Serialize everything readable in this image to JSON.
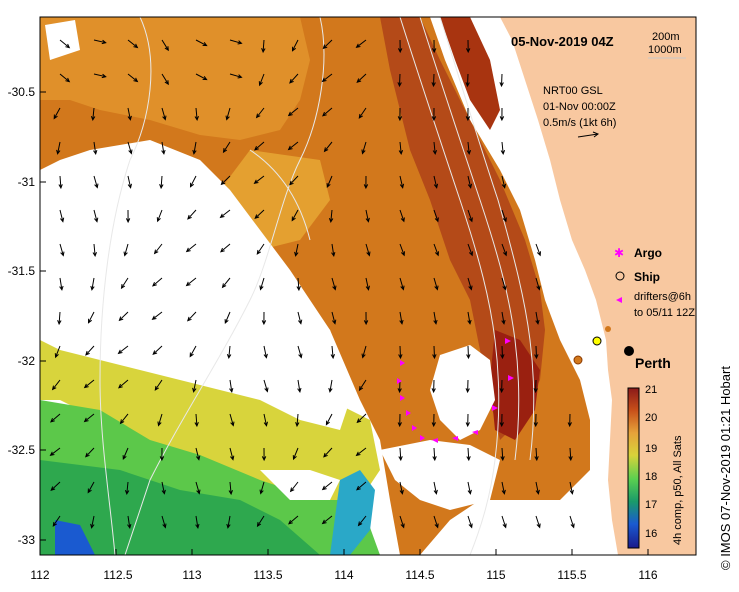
{
  "map": {
    "title": "05-Nov-2019 04Z",
    "depth_legend": [
      "200m",
      "1000m"
    ],
    "product_lines": [
      "NRT00 GSL",
      "01-Nov 00:00Z"
    ],
    "velocity_scale_label": "0.5m/s (1kt 6h)",
    "legend": {
      "argo": "Argo",
      "ship": "Ship",
      "drifters_line1": "drifters@6h",
      "drifters_line2": "to 05/11 12Z"
    },
    "city_label": "Perth",
    "colorbar": {
      "ticks": [
        "21",
        "20",
        "19",
        "18",
        "17",
        "16"
      ],
      "label": "4h comp, p50, All Sats",
      "colors": [
        "#8b1a1a",
        "#c8501a",
        "#e6a23a",
        "#d9d23a",
        "#5ad050",
        "#1a9a6a",
        "#1a5ad0",
        "#1a1a8b"
      ]
    },
    "credit": "© IMOS 07-Nov-2019 01:21 Hobart",
    "x_ticks": [
      "112",
      "112.5",
      "113",
      "113.5",
      "114",
      "114.5",
      "115",
      "115.5",
      "116"
    ],
    "y_ticks": [
      "-30.5",
      "-31",
      "-31.5",
      "-32",
      "-32.5",
      "-33"
    ],
    "colors": {
      "land": "#f8c8a0",
      "sst_dark": "#a83410",
      "sst_orange": "#d2781c",
      "sst_light": "#e4a030",
      "sst_yellow": "#d8d43c",
      "sst_green": "#5cc84a",
      "sst_teal": "#2aa86a",
      "argo": "#ff00ff",
      "ship": "#ffff00"
    }
  }
}
